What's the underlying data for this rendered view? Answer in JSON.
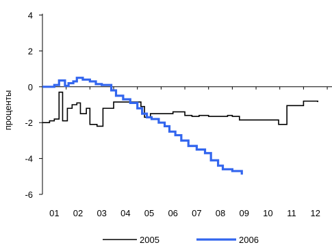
{
  "chart_data": {
    "type": "line",
    "title": "",
    "xlabel": "",
    "ylabel": "проценты",
    "ylim": [
      -6,
      4
    ],
    "yticks": [
      4,
      2,
      0,
      -2,
      -4,
      -6
    ],
    "xlim": [
      0,
      12.2
    ],
    "xticks": [
      "01",
      "02",
      "03",
      "04",
      "05",
      "06",
      "07",
      "08",
      "09",
      "10",
      "11",
      "12"
    ],
    "grid": false,
    "legend": "bottom",
    "series": [
      {
        "name": "2005",
        "color": "#000000",
        "step": true,
        "x": [
          0.0,
          0.3,
          0.5,
          0.7,
          0.85,
          1.05,
          1.25,
          1.45,
          1.6,
          1.85,
          2.0,
          2.3,
          2.55,
          3.0,
          3.3,
          3.7,
          4.0,
          4.15,
          4.3,
          4.55,
          5.0,
          5.5,
          6.0,
          6.3,
          6.6,
          7.0,
          7.4,
          7.8,
          8.0,
          8.3,
          8.6,
          9.0,
          9.5,
          9.95,
          10.3,
          10.7,
          11.0,
          11.2,
          11.6
        ],
        "y": [
          -2.0,
          -1.9,
          -1.8,
          -0.3,
          -1.9,
          -1.2,
          -1.0,
          -0.9,
          -1.5,
          -1.2,
          -2.1,
          -2.2,
          -1.2,
          -0.85,
          -0.85,
          -0.85,
          -0.85,
          -1.1,
          -1.7,
          -1.5,
          -1.5,
          -1.4,
          -1.6,
          -1.65,
          -1.6,
          -1.65,
          -1.65,
          -1.6,
          -1.65,
          -1.85,
          -1.85,
          -1.85,
          -1.85,
          -2.1,
          -1.05,
          -1.05,
          -0.8,
          -0.8,
          -0.85
        ]
      },
      {
        "name": "2006",
        "color": "#3366ee",
        "step": true,
        "x": [
          0.0,
          0.5,
          0.7,
          0.95,
          1.1,
          1.3,
          1.45,
          1.7,
          2.0,
          2.25,
          2.5,
          2.7,
          2.9,
          3.1,
          3.4,
          3.7,
          4.0,
          4.2,
          4.4,
          4.6,
          4.9,
          5.15,
          5.35,
          5.6,
          5.85,
          6.15,
          6.5,
          6.85,
          7.1,
          7.4,
          7.6,
          8.0,
          8.4
        ],
        "y": [
          0.0,
          0.1,
          0.35,
          0.05,
          0.2,
          0.3,
          0.5,
          0.4,
          0.3,
          0.15,
          0.1,
          0.1,
          -0.2,
          -0.5,
          -0.7,
          -0.9,
          -1.2,
          -1.5,
          -1.7,
          -1.8,
          -2.0,
          -2.2,
          -2.5,
          -2.7,
          -3.0,
          -3.3,
          -3.5,
          -3.7,
          -4.1,
          -4.4,
          -4.6,
          -4.7,
          -4.9
        ]
      }
    ]
  }
}
